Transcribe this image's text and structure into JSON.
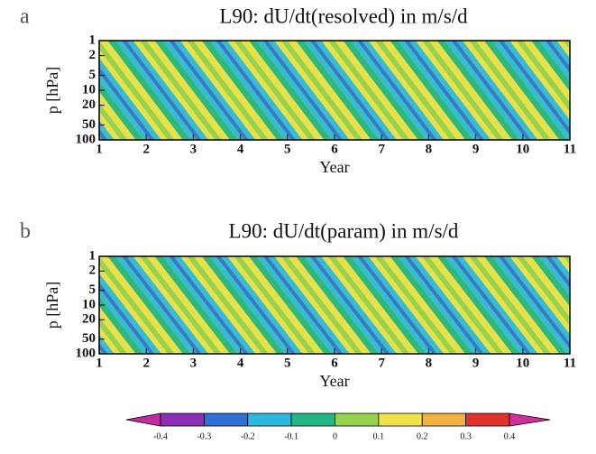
{
  "chart_data": [
    {
      "type": "contour",
      "panel": "a",
      "title": "L90: dU/dt(resolved) in m/s/d",
      "x_label": "Year",
      "y_label": "p [hPa]",
      "xlim": [
        1,
        11
      ],
      "xticks": [
        1,
        2,
        3,
        4,
        5,
        6,
        7,
        8,
        9,
        10,
        11
      ],
      "ylim": [
        1,
        100
      ],
      "yticks": [
        1,
        2,
        5,
        10,
        20,
        50,
        100
      ],
      "y_scale": "log",
      "y_reversed": true
    },
    {
      "type": "contour",
      "panel": "b",
      "title": "L90: dU/dt(param) in m/s/d",
      "x_label": "Year",
      "y_label": "p [hPa]",
      "xlim": [
        1,
        11
      ],
      "xticks": [
        1,
        2,
        3,
        4,
        5,
        6,
        7,
        8,
        9,
        10,
        11
      ],
      "ylim": [
        1,
        100
      ],
      "yticks": [
        1,
        2,
        5,
        10,
        20,
        50,
        100
      ],
      "y_scale": "log",
      "y_reversed": true
    }
  ],
  "colorbar": {
    "ticks": [
      -0.4,
      -0.3,
      -0.2,
      -0.1,
      0,
      0.1,
      0.2,
      0.3,
      0.4
    ],
    "colors": [
      "#c42aa0",
      "#8c2fb8",
      "#2f6fd8",
      "#2cb9e0",
      "#23b584",
      "#97d24e",
      "#f2e24a",
      "#f0b23e",
      "#e2302a",
      "#d0309a"
    ]
  }
}
